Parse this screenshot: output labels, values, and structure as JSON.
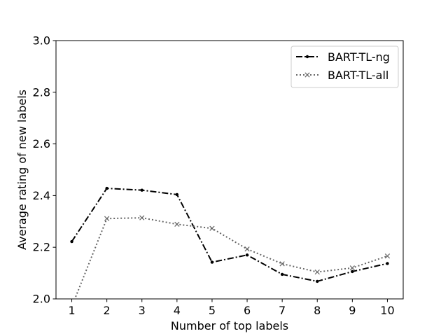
{
  "chart_data": {
    "type": "line",
    "xlabel": "Number of top labels",
    "ylabel": "Average rating of new labels",
    "x": [
      1,
      2,
      3,
      4,
      5,
      6,
      7,
      8,
      9,
      10
    ],
    "xlim": [
      0.55,
      10.45
    ],
    "ylim": [
      2.0,
      3.0
    ],
    "xticks": [
      1,
      2,
      3,
      4,
      5,
      6,
      7,
      8,
      9,
      10
    ],
    "yticks": [
      "2.0",
      "2.2",
      "2.4",
      "2.6",
      "2.8",
      "3.0"
    ],
    "grid": false,
    "legend_position": "top-right",
    "series": [
      {
        "name": "BART-TL-ng",
        "values": [
          2.222,
          2.428,
          2.421,
          2.404,
          2.142,
          2.17,
          2.095,
          2.068,
          2.106,
          2.137
        ],
        "color": "#000000",
        "line_style": "dash-dot",
        "marker": "dot"
      },
      {
        "name": "BART-TL-all",
        "values": [
          1.97,
          2.311,
          2.314,
          2.289,
          2.273,
          2.193,
          2.136,
          2.104,
          2.12,
          2.166
        ],
        "color": "#666666",
        "line_style": "dotted",
        "marker": "x"
      }
    ]
  }
}
